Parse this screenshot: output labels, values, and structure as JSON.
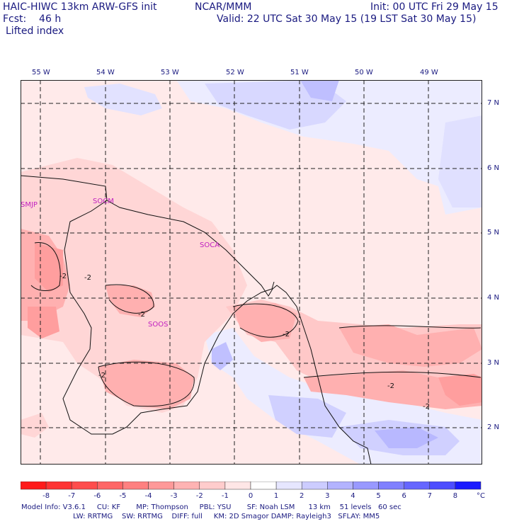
{
  "header": {
    "title": "HAIC-HIWC 13km ARW-GFS init",
    "org": "NCAR/MMM",
    "init": "Init: 00 UTC Fri 29 May 15",
    "fcst": "Fcst:    46 h",
    "valid": "Valid: 22 UTC Sat 30 May 15 (19 LST Sat 30 May 15)",
    "field": "Lifted index"
  },
  "map": {
    "lon_labels": [
      "55 W",
      "54 W",
      "53 W",
      "52 W",
      "51 W",
      "50 W",
      "49 W"
    ],
    "lat_labels": [
      "7 N",
      "6 N",
      "5 N",
      "4 N",
      "3 N",
      "2 N"
    ],
    "stations": [
      "SMJP",
      "SOCM",
      "SOCA",
      "SOOS"
    ],
    "contour_labels": [
      "-2",
      "-2",
      "-2",
      "-2",
      "-2",
      "-2",
      "-2"
    ]
  },
  "colorbar": {
    "ticks": [
      "-8",
      "-7",
      "-6",
      "-5",
      "-4",
      "-3",
      "-2",
      "-1",
      "0",
      "1",
      "2",
      "3",
      "4",
      "5",
      "6",
      "7",
      "8"
    ],
    "unit": "°C",
    "colors": [
      "#ff1a1a",
      "#ff3333",
      "#ff4d4d",
      "#ff6666",
      "#ff8080",
      "#ff9999",
      "#ffb3b3",
      "#ffcccc",
      "#ffe6e6",
      "#ffffff",
      "#e6e6ff",
      "#ccccff",
      "#b3b3ff",
      "#9999ff",
      "#8080ff",
      "#6666ff",
      "#4d4dff",
      "#1a1aff"
    ]
  },
  "model_info": {
    "line1": "Model Info: V3.6.1     CU: KF       MP: Thompson     PBL: YSU       SF: Noah LSM      13 km    51 levels   60 sec",
    "line2": "                       LW: RRTMG    SW: RRTMG    DIFF: full     KM: 2D Smagor DAMP: Rayleigh3   SFLAY: MM5"
  }
}
